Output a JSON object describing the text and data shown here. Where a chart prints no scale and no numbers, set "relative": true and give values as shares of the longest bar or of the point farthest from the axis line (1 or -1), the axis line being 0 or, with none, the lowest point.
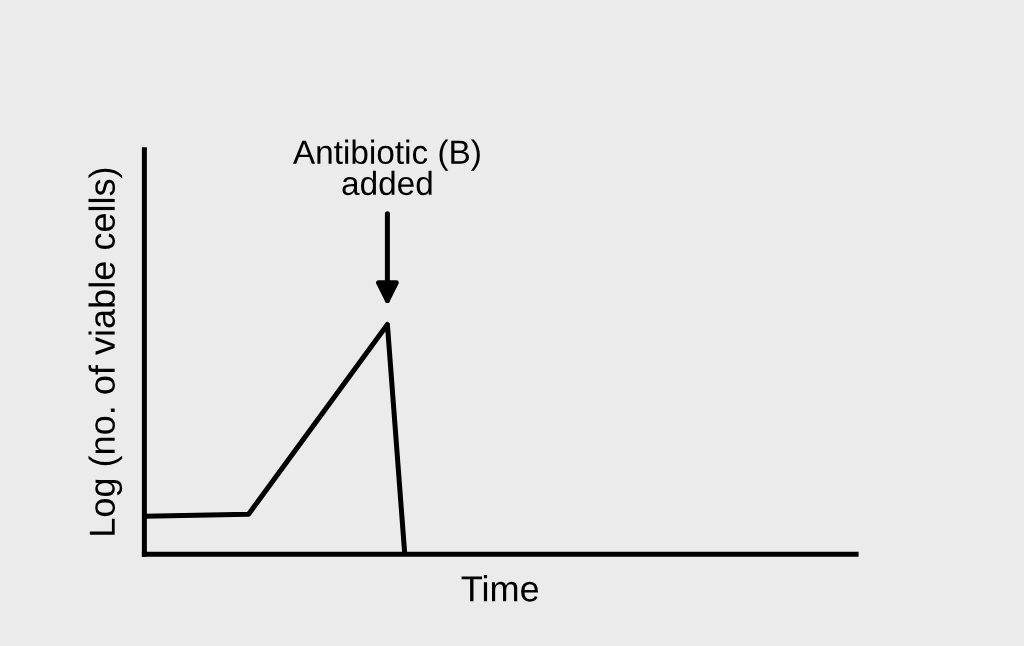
{
  "chart_data": {
    "type": "line",
    "relative": true,
    "xlabel": "Time",
    "ylabel": "Log (no. of viable cells)",
    "categories": [
      null,
      null,
      null,
      null,
      null,
      null,
      null,
      null,
      null,
      null,
      null,
      null,
      null,
      null,
      null,
      null,
      null,
      null,
      null,
      null,
      null,
      null,
      null,
      null,
      null,
      null,
      null,
      null,
      null,
      null,
      null,
      null,
      null,
      null,
      null,
      null,
      null,
      null,
      null,
      null,
      null,
      null
    ],
    "series": [
      {
        "color": "#000000",
        "values": [
          0.165,
          null,
          null,
          null,
          null,
          null,
          0.174,
          null,
          null,
          null,
          null,
          null,
          null,
          null,
          1,
          0,
          null,
          null,
          null,
          null,
          null,
          null,
          null,
          null,
          null,
          null,
          null,
          null,
          null,
          null,
          null,
          null,
          null,
          null,
          null,
          null,
          null,
          null,
          null,
          null,
          null,
          null
        ]
      }
    ],
    "annotations": [
      "Antibiotic (B)\nadded"
    ],
    "marker": "none",
    "line_style": "solid"
  }
}
